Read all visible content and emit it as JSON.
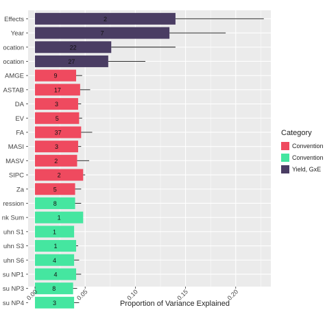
{
  "chart_data": {
    "type": "bar",
    "orientation": "horizontal",
    "xlabel": "Proportion of Variance Explained",
    "ylabel": "",
    "xlim": [
      0,
      0.235
    ],
    "xticks": [
      "0.00",
      "0.05",
      "0.10",
      "0.15",
      "0.20"
    ],
    "xtick_values": [
      0,
      0.05,
      0.1,
      0.15,
      0.2
    ],
    "grid": true,
    "legend_position": "right",
    "legend": {
      "title": "Category",
      "entries": [
        {
          "label": "Convention",
          "color": "#ef4a5f"
        },
        {
          "label": "Convention",
          "color": "#45e6a0"
        },
        {
          "label": "Yield, GxE",
          "color": "#4a3d63"
        }
      ]
    },
    "colors": {
      "red": "#ef4a5f",
      "green": "#45e6a0",
      "purple": "#4a3d63",
      "panel": "#ebebeb",
      "grid": "#ffffff"
    },
    "bars": [
      {
        "label": "Effects",
        "value": 0.14,
        "error_high": 0.228,
        "n": "2",
        "group": 2
      },
      {
        "label": "Year",
        "value": 0.134,
        "error_high": 0.19,
        "n": "7",
        "group": 2
      },
      {
        "label": "ocation",
        "value": 0.076,
        "error_high": 0.14,
        "n": "22",
        "group": 2
      },
      {
        "label": "ocation",
        "value": 0.073,
        "error_high": 0.11,
        "n": "27",
        "group": 2
      },
      {
        "label": "AMGE",
        "value": 0.041,
        "error_high": 0.047,
        "n": "9",
        "group": 0
      },
      {
        "label": "ASTAB",
        "value": 0.045,
        "error_high": 0.055,
        "n": "17",
        "group": 0
      },
      {
        "label": "DA",
        "value": 0.043,
        "error_high": 0.046,
        "n": "3",
        "group": 0
      },
      {
        "label": "EV",
        "value": 0.044,
        "error_high": 0.047,
        "n": "5",
        "group": 0
      },
      {
        "label": "FA",
        "value": 0.046,
        "error_high": 0.057,
        "n": "37",
        "group": 0
      },
      {
        "label": "MASI",
        "value": 0.043,
        "error_high": 0.046,
        "n": "3",
        "group": 0
      },
      {
        "label": "MASV",
        "value": 0.042,
        "error_high": 0.054,
        "n": "2",
        "group": 0
      },
      {
        "label": "SIPC",
        "value": 0.048,
        "error_high": 0.05,
        "n": "2",
        "group": 0
      },
      {
        "label": "Za",
        "value": 0.04,
        "error_high": 0.046,
        "n": "5",
        "group": 0
      },
      {
        "label": "ression",
        "value": 0.04,
        "error_high": 0.046,
        "n": "8",
        "group": 1
      },
      {
        "label": "nk Sum",
        "value": 0.048,
        "error_high": 0.048,
        "n": "1",
        "group": 1
      },
      {
        "label": "uhn S1",
        "value": 0.039,
        "error_high": 0.039,
        "n": "1",
        "group": 1
      },
      {
        "label": "uhn S3",
        "value": 0.041,
        "error_high": 0.043,
        "n": "1",
        "group": 1
      },
      {
        "label": "uhn S6",
        "value": 0.039,
        "error_high": 0.044,
        "n": "4",
        "group": 1
      },
      {
        "label": "su NP1",
        "value": 0.041,
        "error_high": 0.046,
        "n": "4",
        "group": 1
      },
      {
        "label": "su NP3",
        "value": 0.038,
        "error_high": 0.042,
        "n": "8",
        "group": 1
      },
      {
        "label": "su NP4",
        "value": 0.039,
        "error_high": 0.044,
        "n": "3",
        "group": 1
      }
    ]
  }
}
